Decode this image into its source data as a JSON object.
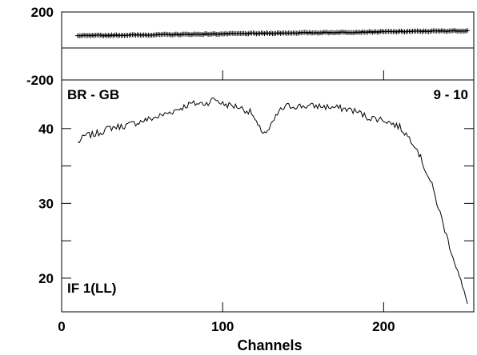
{
  "chart_data": [
    {
      "type": "line",
      "panel": "phase",
      "ylim": [
        -200,
        200
      ],
      "xlim": [
        0,
        256
      ],
      "y_ticks": [
        200,
        -200
      ],
      "series": [
        {
          "x_start": 10,
          "x_end": 252,
          "y_start": 60,
          "y_end": 90,
          "marker": "plus"
        }
      ]
    },
    {
      "type": "line",
      "panel": "amplitude",
      "xlabel": "Channels",
      "xlim": [
        0,
        256
      ],
      "ylim": [
        15.5,
        46.5
      ],
      "x_ticks": [
        0,
        100,
        200
      ],
      "y_ticks": [
        20,
        30,
        40
      ],
      "annotations": {
        "baseline": "BR - GB",
        "scan": "9 - 10",
        "if_label": "IF 1(LL)"
      },
      "series": [
        {
          "x": [
            10,
            15,
            20,
            25,
            30,
            40,
            50,
            60,
            70,
            80,
            90,
            95,
            100,
            110,
            118,
            122,
            125,
            128,
            131,
            135,
            140,
            150,
            160,
            170,
            180,
            185,
            190,
            200,
            210,
            215,
            220,
            225,
            230,
            235,
            240,
            245,
            248,
            250,
            252
          ],
          "values": [
            38.1,
            39.1,
            39.2,
            39.6,
            40.1,
            40.4,
            41.0,
            41.6,
            42.4,
            43.3,
            43.4,
            44.0,
            43.3,
            42.9,
            42.1,
            40.2,
            39.6,
            39.5,
            40.7,
            42.3,
            43.0,
            43.0,
            43.0,
            42.8,
            42.5,
            42.1,
            41.5,
            41.2,
            40.2,
            39.0,
            37.7,
            35.0,
            32.4,
            28.7,
            25.0,
            21.6,
            19.5,
            18.0,
            16.9
          ],
          "noise": 0.45
        }
      ]
    }
  ]
}
